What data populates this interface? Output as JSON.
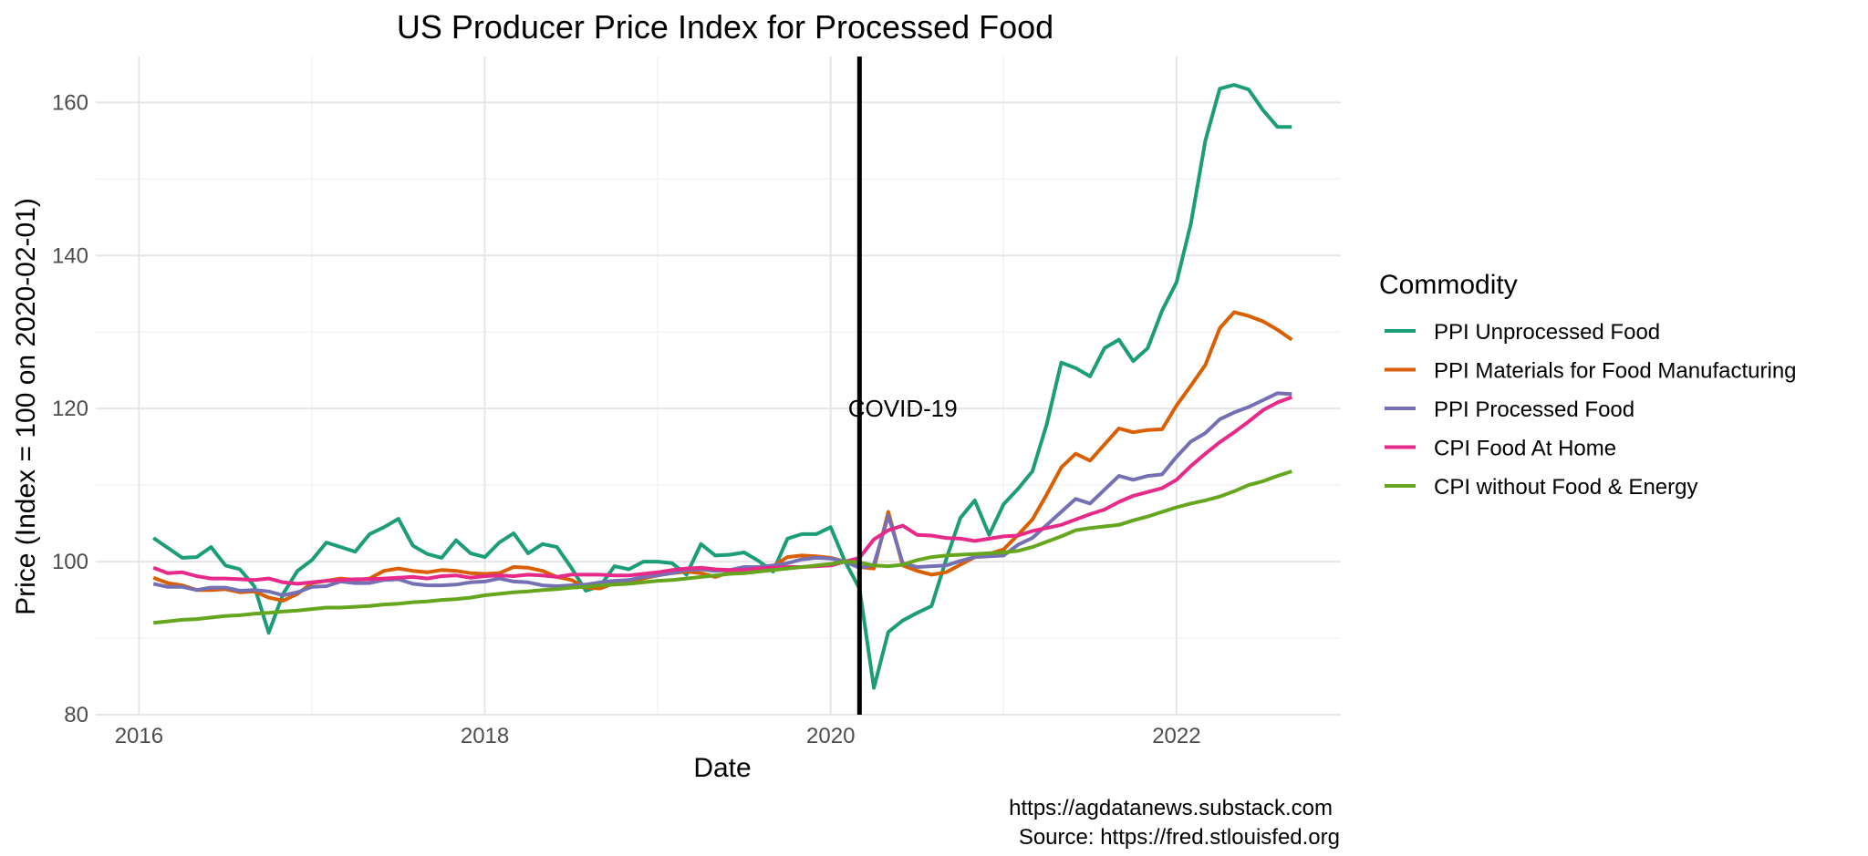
{
  "chart_data": {
    "type": "line",
    "title": "US Producer Price Index for Processed Food",
    "xlabel": "Date",
    "ylabel": "Price (Index = 100 on 2020-02-01)",
    "xlim": [
      2015.75,
      2022.95
    ],
    "ylim": [
      80,
      166
    ],
    "x_ticks": [
      2016,
      2018,
      2020,
      2022
    ],
    "x_tick_labels": [
      "2016",
      "2018",
      "2020",
      "2022"
    ],
    "y_ticks": [
      80,
      100,
      120,
      140,
      160
    ],
    "y_tick_labels": [
      "80",
      "100",
      "120",
      "140",
      "160"
    ],
    "grid": true,
    "legend": {
      "title": "Commodity",
      "position": "right"
    },
    "vline": {
      "x": "2020-03-01",
      "color": "#000000"
    },
    "annotation": {
      "text": "COVID-19",
      "x": "2020-06-01",
      "y": 120
    },
    "caption": [
      "https://agdatanews.substack.com",
      "Source: https://fred.stlouisfed.org"
    ],
    "x": [
      "2016-02",
      "2016-03",
      "2016-04",
      "2016-05",
      "2016-06",
      "2016-07",
      "2016-08",
      "2016-09",
      "2016-10",
      "2016-11",
      "2016-12",
      "2017-01",
      "2017-02",
      "2017-03",
      "2017-04",
      "2017-05",
      "2017-06",
      "2017-07",
      "2017-08",
      "2017-09",
      "2017-10",
      "2017-11",
      "2017-12",
      "2018-01",
      "2018-02",
      "2018-03",
      "2018-04",
      "2018-05",
      "2018-06",
      "2018-07",
      "2018-08",
      "2018-09",
      "2018-10",
      "2018-11",
      "2018-12",
      "2019-01",
      "2019-02",
      "2019-03",
      "2019-04",
      "2019-05",
      "2019-06",
      "2019-07",
      "2019-08",
      "2019-09",
      "2019-10",
      "2019-11",
      "2019-12",
      "2020-01",
      "2020-02",
      "2020-03",
      "2020-04",
      "2020-05",
      "2020-06",
      "2020-07",
      "2020-08",
      "2020-09",
      "2020-10",
      "2020-11",
      "2020-12",
      "2021-01",
      "2021-02",
      "2021-03",
      "2021-04",
      "2021-05",
      "2021-06",
      "2021-07",
      "2021-08",
      "2021-09",
      "2021-10",
      "2021-11",
      "2021-12",
      "2022-01",
      "2022-02",
      "2022-03",
      "2022-04",
      "2022-05",
      "2022-06",
      "2022-07",
      "2022-08",
      "2022-09"
    ],
    "series": [
      {
        "name": "PPI Unprocessed Food",
        "color": "#1b9e77",
        "values": [
          103.1,
          101.8,
          100.5,
          100.6,
          101.9,
          99.5,
          99.0,
          96.8,
          90.7,
          95.8,
          98.8,
          100.2,
          102.5,
          101.9,
          101.3,
          103.6,
          104.5,
          105.6,
          102.1,
          101.0,
          100.5,
          102.8,
          101.1,
          100.6,
          102.5,
          103.7,
          101.1,
          102.3,
          101.9,
          99.2,
          96.2,
          96.8,
          99.4,
          99.0,
          100.0,
          100.0,
          99.8,
          98.3,
          102.3,
          100.8,
          100.9,
          101.2,
          100.1,
          98.7,
          103.0,
          103.6,
          103.6,
          104.5,
          100.0,
          96.5,
          83.5,
          90.8,
          92.3,
          93.3,
          94.2,
          100.2,
          105.7,
          108.0,
          103.5,
          107.5,
          109.5,
          111.8,
          118.0,
          126.0,
          125.3,
          124.2,
          127.9,
          129.0,
          126.2,
          127.9,
          132.8,
          136.5,
          144.2,
          155.0,
          161.8,
          162.3,
          161.7,
          159.0,
          156.8,
          156.8
        ]
      },
      {
        "name": "PPI Materials for Food Manufacturing",
        "color": "#d95f02",
        "values": [
          97.9,
          97.2,
          96.9,
          96.3,
          96.3,
          96.4,
          96.0,
          96.1,
          95.3,
          94.9,
          95.8,
          97.2,
          97.5,
          97.8,
          97.6,
          97.8,
          98.8,
          99.1,
          98.8,
          98.6,
          98.9,
          98.8,
          98.5,
          98.4,
          98.5,
          99.3,
          99.2,
          98.8,
          98.0,
          97.6,
          96.6,
          96.5,
          97.2,
          97.4,
          97.8,
          98.2,
          98.5,
          98.7,
          98.5,
          98.0,
          98.6,
          98.6,
          98.9,
          99.4,
          100.6,
          100.8,
          100.7,
          100.5,
          100.0,
          99.3,
          99.1,
          106.5,
          99.5,
          98.8,
          98.3,
          98.6,
          99.6,
          100.6,
          101.0,
          101.6,
          103.5,
          105.5,
          108.8,
          112.3,
          114.1,
          113.2,
          115.3,
          117.4,
          116.9,
          117.2,
          117.3,
          120.4,
          123.0,
          125.7,
          130.5,
          132.6,
          132.1,
          131.4,
          130.3,
          129.0
        ]
      },
      {
        "name": "PPI Processed Food",
        "color": "#7570b3",
        "values": [
          97.1,
          96.7,
          96.7,
          96.3,
          96.6,
          96.6,
          96.2,
          96.3,
          96.1,
          95.6,
          96.0,
          96.7,
          96.8,
          97.4,
          97.2,
          97.2,
          97.6,
          97.7,
          97.1,
          96.9,
          96.9,
          97.0,
          97.3,
          97.4,
          97.8,
          97.4,
          97.3,
          96.9,
          96.8,
          96.9,
          97.0,
          97.3,
          97.5,
          97.6,
          98.0,
          98.2,
          98.5,
          98.9,
          99.0,
          98.8,
          98.9,
          99.3,
          99.3,
          99.5,
          99.8,
          100.3,
          100.5,
          100.4,
          100.0,
          99.2,
          99.6,
          106.0,
          99.8,
          99.3,
          99.4,
          99.5,
          100.1,
          100.6,
          100.7,
          100.8,
          102.2,
          103.1,
          104.8,
          106.5,
          108.2,
          107.6,
          109.4,
          111.2,
          110.7,
          111.2,
          111.4,
          113.7,
          115.7,
          116.8,
          118.6,
          119.5,
          120.2,
          121.1,
          122.0,
          121.9
        ]
      },
      {
        "name": "CPI Food At Home",
        "color": "#e7298a",
        "values": [
          99.2,
          98.5,
          98.6,
          98.1,
          97.8,
          97.8,
          97.7,
          97.6,
          97.8,
          97.3,
          97.1,
          97.3,
          97.5,
          97.6,
          97.7,
          97.7,
          97.8,
          97.9,
          98.0,
          97.8,
          98.1,
          98.2,
          97.9,
          98.1,
          98.2,
          98.1,
          98.3,
          98.2,
          98.0,
          98.3,
          98.3,
          98.3,
          98.2,
          98.2,
          98.4,
          98.6,
          98.9,
          99.1,
          99.2,
          99.0,
          98.9,
          98.9,
          99.1,
          99.2,
          99.3,
          99.3,
          99.4,
          99.5,
          100.0,
          100.5,
          102.9,
          104.1,
          104.7,
          103.5,
          103.4,
          103.1,
          103.0,
          102.7,
          103.0,
          103.3,
          103.4,
          104.0,
          104.4,
          104.8,
          105.5,
          106.2,
          106.8,
          107.8,
          108.6,
          109.1,
          109.6,
          110.7,
          112.5,
          114.1,
          115.6,
          116.9,
          118.3,
          119.8,
          120.8,
          121.5
        ]
      },
      {
        "name": "CPI without Food & Energy",
        "color": "#66a61e",
        "values": [
          92.0,
          92.2,
          92.4,
          92.5,
          92.7,
          92.9,
          93.0,
          93.2,
          93.3,
          93.5,
          93.6,
          93.8,
          94.0,
          94.0,
          94.1,
          94.2,
          94.4,
          94.5,
          94.7,
          94.8,
          95.0,
          95.1,
          95.3,
          95.6,
          95.8,
          96.0,
          96.1,
          96.3,
          96.4,
          96.6,
          96.7,
          96.9,
          97.0,
          97.1,
          97.3,
          97.5,
          97.6,
          97.8,
          98.0,
          98.2,
          98.4,
          98.5,
          98.7,
          98.9,
          99.1,
          99.3,
          99.5,
          99.7,
          100.0,
          99.9,
          99.5,
          99.4,
          99.6,
          100.2,
          100.6,
          100.8,
          100.9,
          101.0,
          101.1,
          101.2,
          101.4,
          101.9,
          102.6,
          103.3,
          104.1,
          104.4,
          104.6,
          104.8,
          105.4,
          105.9,
          106.5,
          107.1,
          107.6,
          108.0,
          108.5,
          109.2,
          110.0,
          110.5,
          111.2,
          111.8
        ]
      }
    ]
  }
}
